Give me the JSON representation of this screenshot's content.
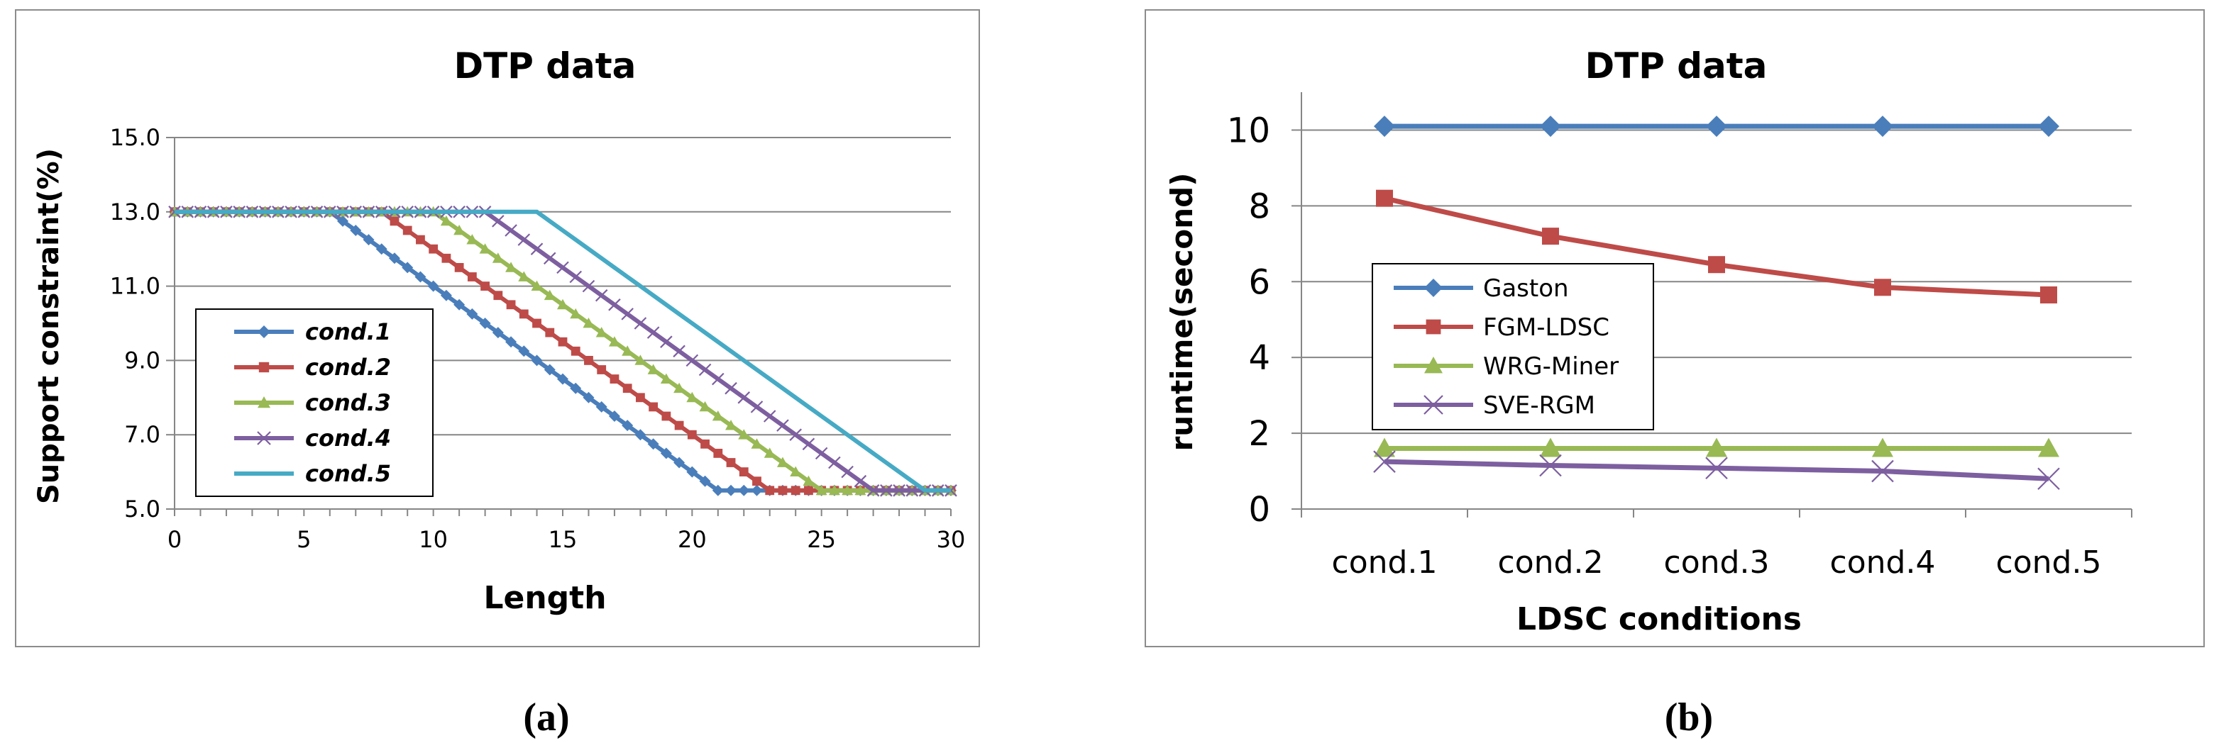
{
  "figure": {
    "label_a": "(a)",
    "label_b": "(b)"
  },
  "chart_data": [
    {
      "type": "line",
      "title": "DTP data",
      "xlabel": "Length",
      "ylabel": "Support constraint(%)",
      "xlim": [
        0,
        30
      ],
      "ylim": [
        5.0,
        15.0
      ],
      "xticks": [
        "0",
        "5",
        "10",
        "15",
        "20",
        "25",
        "30"
      ],
      "yticks": [
        "5.0",
        "7.0",
        "9.0",
        "11.0",
        "13.0",
        "15.0"
      ],
      "grid": true,
      "legend": "left",
      "series": [
        {
          "name": "cond.1",
          "color": "#4a7ebb",
          "marker": "diamond",
          "plateau_end": 6,
          "floor_start": 21
        },
        {
          "name": "cond.2",
          "color": "#be4b48",
          "marker": "square",
          "plateau_end": 8,
          "floor_start": 23
        },
        {
          "name": "cond.3",
          "color": "#98b954",
          "marker": "triangle",
          "plateau_end": 10,
          "floor_start": 25
        },
        {
          "name": "cond.4",
          "color": "#7d5fa0",
          "marker": "x",
          "plateau_end": 12,
          "floor_start": 27
        },
        {
          "name": "cond.5",
          "color": "#46aac5",
          "marker": "none",
          "plateau_end": 14,
          "floor_start": 29
        }
      ],
      "curve": {
        "x_start": 0,
        "x_end": 30,
        "step": 0.5,
        "high": 13.0,
        "low": 5.5
      }
    },
    {
      "type": "line",
      "title": "DTP data",
      "xlabel": "LDSC conditions",
      "ylabel": "runtime(second)",
      "categories": [
        "cond.1",
        "cond.2",
        "cond.3",
        "cond.4",
        "cond.5"
      ],
      "ylim": [
        0,
        11
      ],
      "yticks": [
        "0",
        "2",
        "4",
        "6",
        "8",
        "10"
      ],
      "grid": true,
      "legend": "left",
      "series": [
        {
          "name": "Gaston",
          "color": "#4a7ebb",
          "marker": "diamond",
          "values": [
            10.1,
            10.1,
            10.1,
            10.1,
            10.1
          ]
        },
        {
          "name": "FGM-LDSC",
          "color": "#be4b48",
          "marker": "square",
          "values": [
            8.2,
            7.2,
            6.45,
            5.85,
            5.65
          ]
        },
        {
          "name": "WRG-Miner",
          "color": "#98b954",
          "marker": "triangle",
          "values": [
            1.6,
            1.6,
            1.6,
            1.6,
            1.6
          ]
        },
        {
          "name": "SVE-RGM",
          "color": "#7d5fa0",
          "marker": "x",
          "values": [
            1.25,
            1.15,
            1.08,
            1.0,
            0.8
          ]
        }
      ]
    }
  ]
}
